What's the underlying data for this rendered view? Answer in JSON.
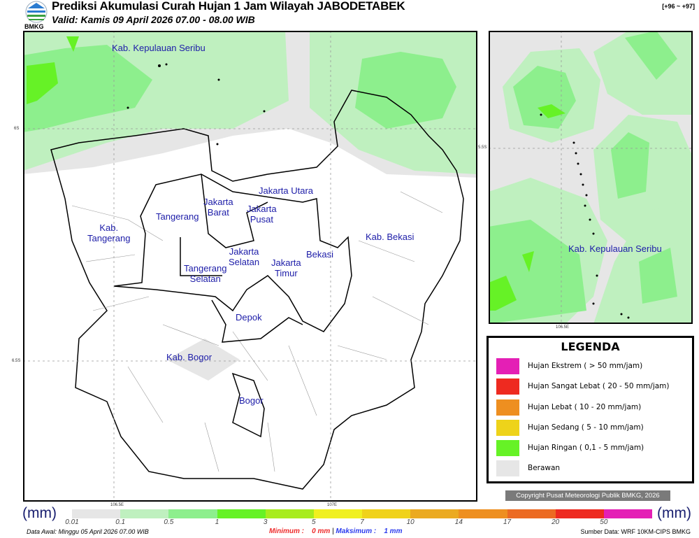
{
  "header": {
    "title": "Prediksi Akumulasi Curah Hujan 1 Jam Wilayah JABODETABEK",
    "valid": "Valid: Kamis 09 April 2026 07.00 - 08.00 WIB",
    "code": "[+96 ~ +97]",
    "logo_text": "BMKG"
  },
  "main_map": {
    "ticks": {
      "lat1": "6S",
      "lat2": "6.5S",
      "lon1": "106.5E",
      "lon2": "107E"
    },
    "labels": {
      "kep_seribu": "Kab. Kepulauan Seribu",
      "jakarta_utara": "Jakarta Utara",
      "jakarta_barat": "Jakarta\nBarat",
      "jakarta_pusat": "Jakarta\nPusat",
      "tangerang": "Tangerang",
      "kab_tangerang": "Kab.\nTangerang",
      "kab_bekasi": "Kab. Bekasi",
      "bekasi": "Bekasi",
      "jakarta_selatan": "Jakarta\nSelatan",
      "jakarta_timur": "Jakarta\nTimur",
      "tangerang_selatan": "Tangerang\nSelatan",
      "depok": "Depok",
      "kab_bogor": "Kab. Bogor",
      "bogor": "Bogor"
    }
  },
  "inset_map": {
    "ticks": {
      "lat": "5.5S",
      "lon": "106.5E"
    },
    "label": "Kab. Kepulauan Seribu"
  },
  "legend": {
    "title": "LEGENDA",
    "items": [
      {
        "label": "Hujan Ekstrem ( > 50 mm/jam)",
        "color": "#e41fb5"
      },
      {
        "label": "Hujan Sangat Lebat ( 20 - 50 mm/jam)",
        "color": "#ee2a20"
      },
      {
        "label": "Hujan Lebat ( 10 - 20 mm/jam)",
        "color": "#ee8f20"
      },
      {
        "label": "Hujan Sedang ( 5 - 10 mm/jam)",
        "color": "#eed31a"
      },
      {
        "label": "Hujan Ringan ( 0,1 - 5 mm/jam)",
        "color": "#66f226"
      },
      {
        "label": "Berawan",
        "color": "#e6e6e6"
      }
    ]
  },
  "copyright": "Copyright Pusat Meteorologi Publik BMKG, 2026",
  "colorbar": {
    "unit_left": "(mm)",
    "unit_right": "(mm)",
    "colors": [
      "#e6e6e6",
      "#bff0bf",
      "#8def8d",
      "#66f226",
      "#a8ec1e",
      "#f0f020",
      "#f0d21a",
      "#ebaa22",
      "#ee8f20",
      "#ec6a22",
      "#ee2a20",
      "#e41fb5"
    ],
    "labels": [
      "0.01",
      "0.1",
      "0.5",
      "1",
      "3",
      "5",
      "7",
      "10",
      "14",
      "17",
      "20",
      "50"
    ]
  },
  "footer": {
    "data_awal": "Data Awal: Minggu 05 April 2026 07.00 WIB",
    "minimum_label": "Minimum :",
    "minimum_value": "0 mm",
    "separator": "|",
    "maksimum_label": "Maksimum :",
    "maksimum_value": "1 mm",
    "sumber": "Sumber Data: WRF 10KM-CIPS BMKG"
  }
}
